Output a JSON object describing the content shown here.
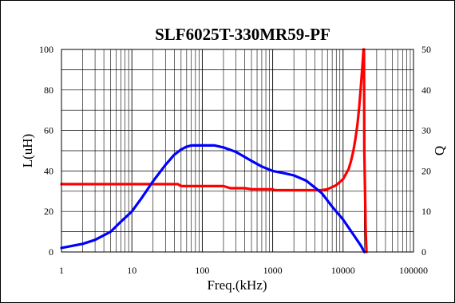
{
  "chart_data": {
    "type": "line",
    "title": "SLF6025T-330MR59-PF",
    "xlabel": "Freq.(kHz)",
    "ylabel": "L(uH)",
    "y2label": "Q",
    "x_scale": "log",
    "xlim": [
      1,
      100000
    ],
    "ylim": [
      0,
      100
    ],
    "y2lim": [
      0,
      50
    ],
    "grid": true,
    "x_ticks": [
      "1",
      "10",
      "100",
      "1000",
      "10000",
      "100000"
    ],
    "y_ticks": [
      "0",
      "20",
      "40",
      "60",
      "80",
      "100"
    ],
    "y2_ticks": [
      "0",
      "10",
      "20",
      "30",
      "40",
      "50"
    ],
    "series": [
      {
        "axis": "left",
        "color": "#ff0000",
        "x": [
          1,
          10,
          30,
          45,
          50,
          100,
          200,
          250,
          400,
          500,
          1000,
          1050,
          5000,
          6000,
          8000,
          10000,
          12000,
          13000,
          14000,
          15000,
          16000,
          17000,
          18000,
          19000,
          19500,
          19800,
          20000,
          20500,
          21000,
          21500
        ],
        "y": [
          33.5,
          33.5,
          33.5,
          33.5,
          32.5,
          32.5,
          32.5,
          31.5,
          31.5,
          31,
          31,
          30.5,
          30.5,
          31,
          33,
          36,
          41,
          45,
          50,
          56,
          63,
          72,
          83,
          94,
          100,
          100,
          50,
          30,
          10,
          0
        ]
      },
      {
        "axis": "right",
        "color": "#0000ff",
        "x": [
          1,
          2,
          3,
          5,
          7,
          10,
          14,
          20,
          30,
          40,
          50,
          60,
          70,
          100,
          150,
          200,
          300,
          500,
          700,
          1000,
          1500,
          2000,
          3000,
          5000,
          7000,
          10000,
          14000,
          18000,
          20000
        ],
        "y": [
          1,
          2,
          3,
          5,
          7.5,
          10,
          13.5,
          17.5,
          21.5,
          24,
          25.3,
          26,
          26.3,
          26.3,
          26.3,
          25.8,
          24.7,
          22.5,
          21.1,
          20,
          19.4,
          18.9,
          17.6,
          14.5,
          11.2,
          8,
          4.3,
          1.5,
          0
        ]
      }
    ]
  }
}
